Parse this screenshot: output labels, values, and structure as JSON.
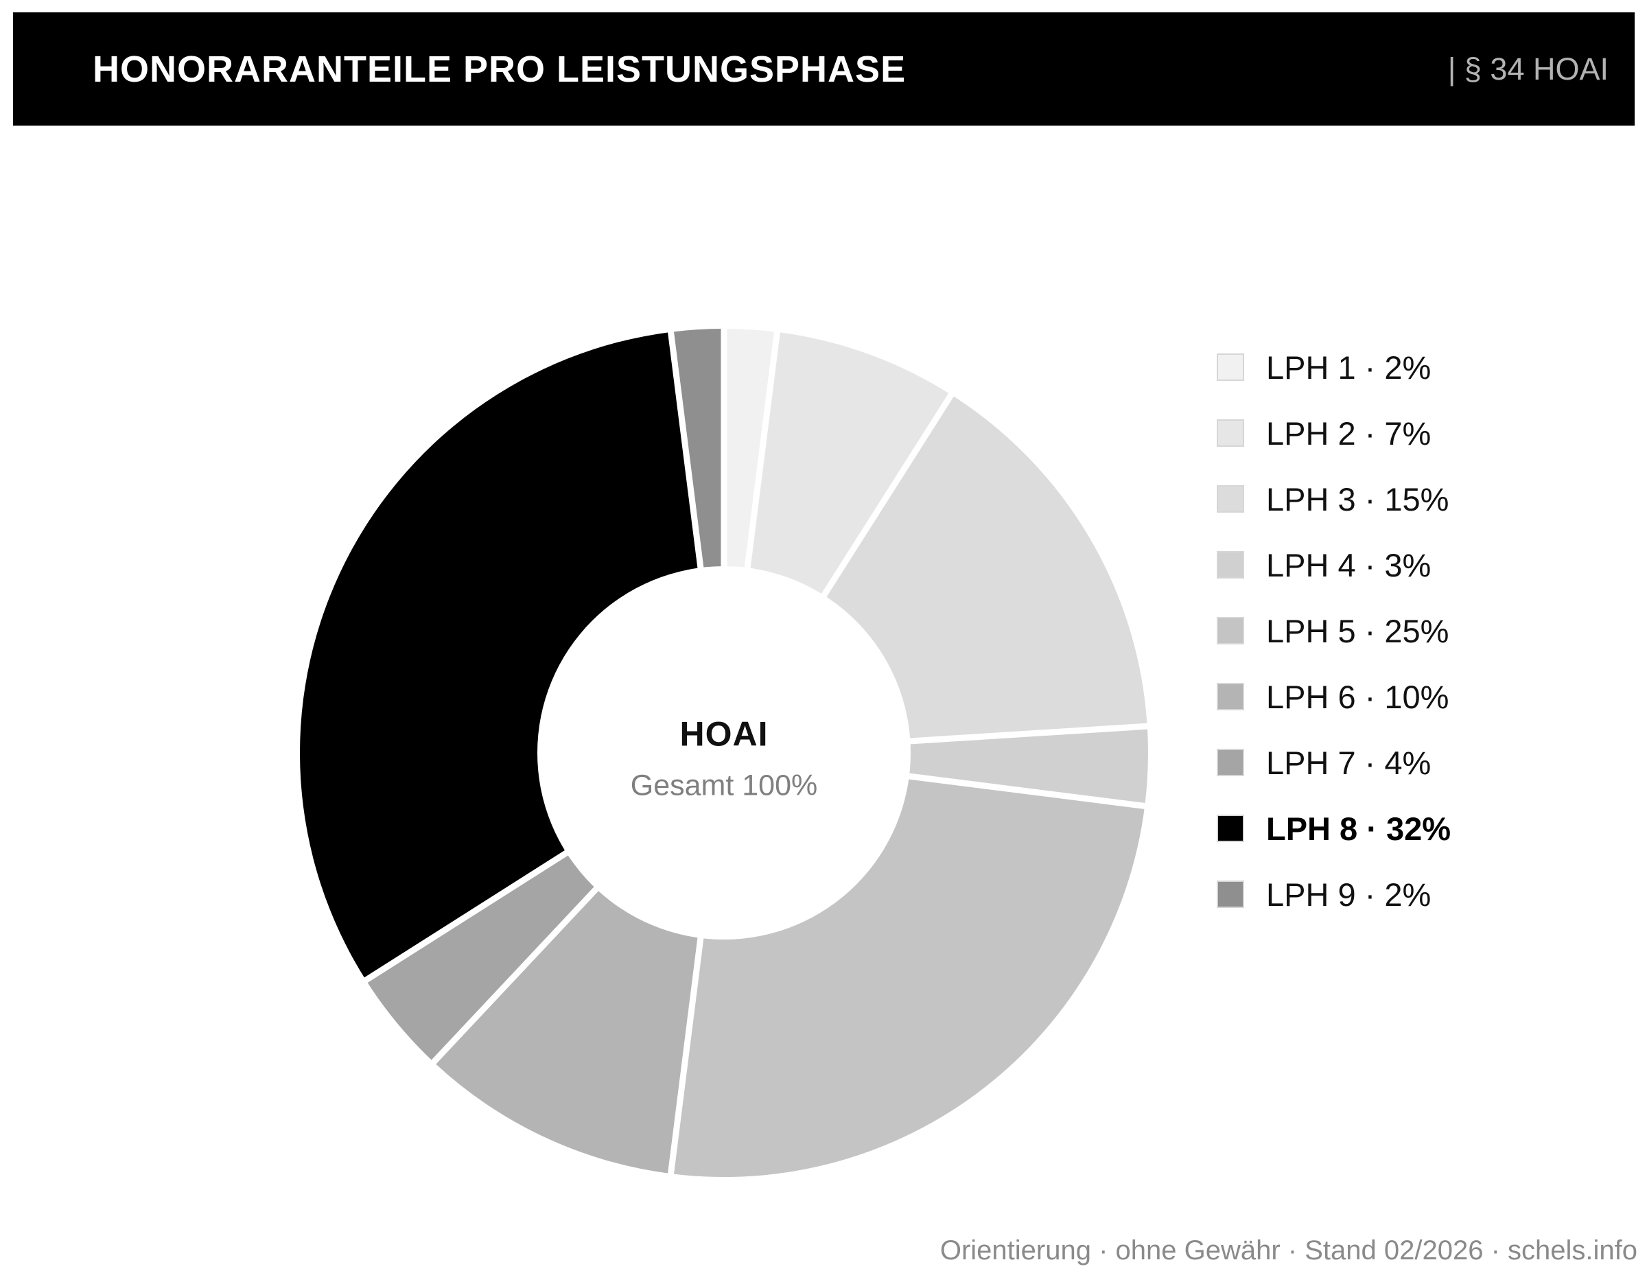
{
  "header": {
    "title": "HONORARANTEILE PRO LEISTUNGSPHASE",
    "right_label": "| § 34 HOAI",
    "bg_color": "#000000",
    "title_color": "#ffffff",
    "right_label_color": "#b3b3b3"
  },
  "center": {
    "title": "HOAI",
    "subtitle": "Gesamt 100%"
  },
  "legend": {
    "items": [
      {
        "label": "LPH 1 · 2%",
        "color": "#f1f1f1",
        "bold": false
      },
      {
        "label": "LPH 2 · 7%",
        "color": "#e6e6e6",
        "bold": false
      },
      {
        "label": "LPH 3 · 15%",
        "color": "#dcdcdc",
        "bold": false
      },
      {
        "label": "LPH 4 · 3%",
        "color": "#d0d0d0",
        "bold": false
      },
      {
        "label": "LPH 5 · 25%",
        "color": "#c4c4c4",
        "bold": false
      },
      {
        "label": "LPH 6 · 10%",
        "color": "#b4b4b4",
        "bold": false
      },
      {
        "label": "LPH 7 · 4%",
        "color": "#a5a5a5",
        "bold": false
      },
      {
        "label": "LPH 8 · 32%",
        "color": "#000000",
        "bold": true
      },
      {
        "label": "LPH 9 · 2%",
        "color": "#8f8f8f",
        "bold": false
      }
    ]
  },
  "footer": {
    "text": "Orientierung · ohne Gewähr · Stand 02/2026 · schels.info"
  },
  "chart_data": {
    "type": "pie",
    "title": "Honoraranteile pro Leistungsphase (§ 34 HOAI)",
    "donut": true,
    "center_label": "HOAI",
    "center_sublabel": "Gesamt 100%",
    "categories": [
      "LPH 1",
      "LPH 2",
      "LPH 3",
      "LPH 4",
      "LPH 5",
      "LPH 6",
      "LPH 7",
      "LPH 8",
      "LPH 9"
    ],
    "values": [
      2,
      7,
      15,
      3,
      25,
      10,
      4,
      32,
      2
    ],
    "unit": "%",
    "total": 100,
    "colors": [
      "#f1f1f1",
      "#e6e6e6",
      "#dcdcdc",
      "#d0d0d0",
      "#c4c4c4",
      "#b4b4b4",
      "#a5a5a5",
      "#000000",
      "#8f8f8f"
    ],
    "emphasized_category": "LPH 8",
    "start_angle_deg": 0,
    "direction": "clockwise",
    "inner_radius_ratio": 0.44,
    "slice_gap_color": "#ffffff",
    "legend_position": "right"
  }
}
